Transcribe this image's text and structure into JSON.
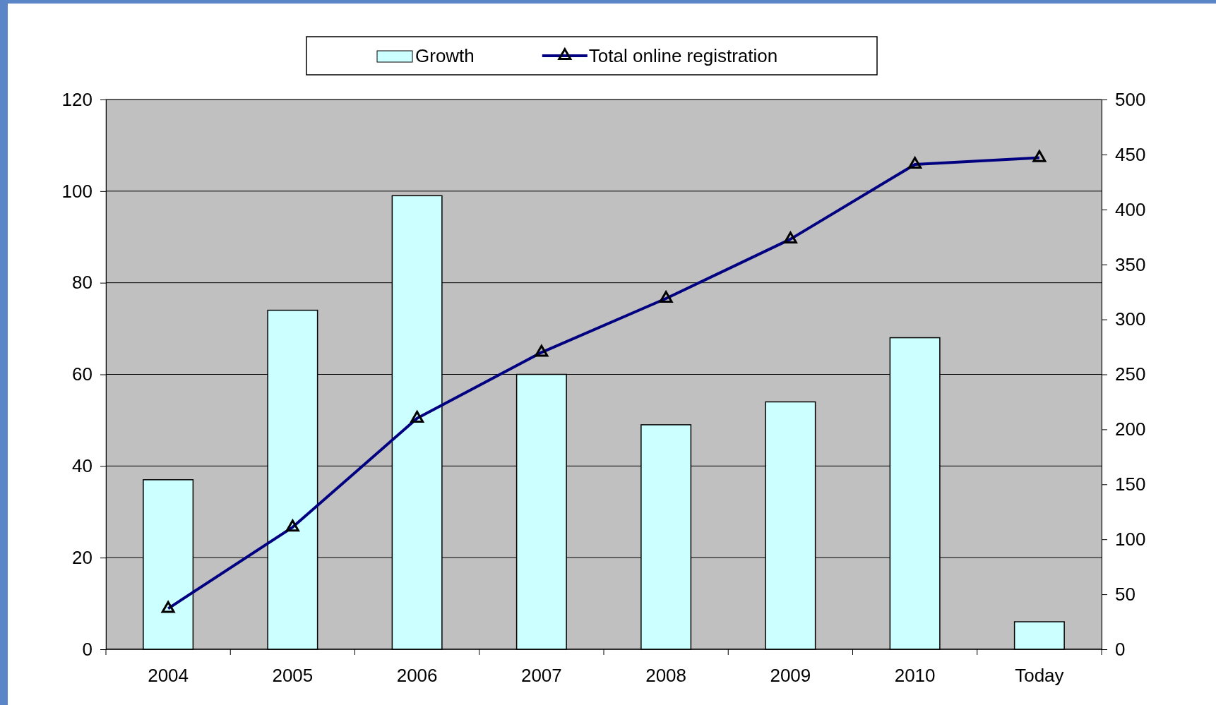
{
  "chart_data": {
    "type": "bar",
    "categories": [
      "2004",
      "2005",
      "2006",
      "2007",
      "2008",
      "2009",
      "2010",
      "Today"
    ],
    "series": [
      {
        "name": "Growth",
        "color": "#ccffff",
        "values": [
          37,
          74,
          99,
          60,
          49,
          54,
          68,
          6
        ]
      },
      {
        "name": "Total online registration",
        "type": "line",
        "axis": "y2",
        "color": "#000080",
        "marker": "triangle",
        "values": [
          37,
          111,
          210,
          270,
          319,
          373,
          441,
          447
        ]
      }
    ],
    "ylim": [
      0,
      120
    ],
    "yticks": [
      0,
      20,
      40,
      60,
      80,
      100,
      120
    ],
    "y2lim": [
      0,
      500
    ],
    "y2ticks": [
      0,
      50,
      100,
      150,
      200,
      250,
      300,
      350,
      400,
      450,
      500
    ],
    "grid": "y",
    "legend": "top"
  }
}
